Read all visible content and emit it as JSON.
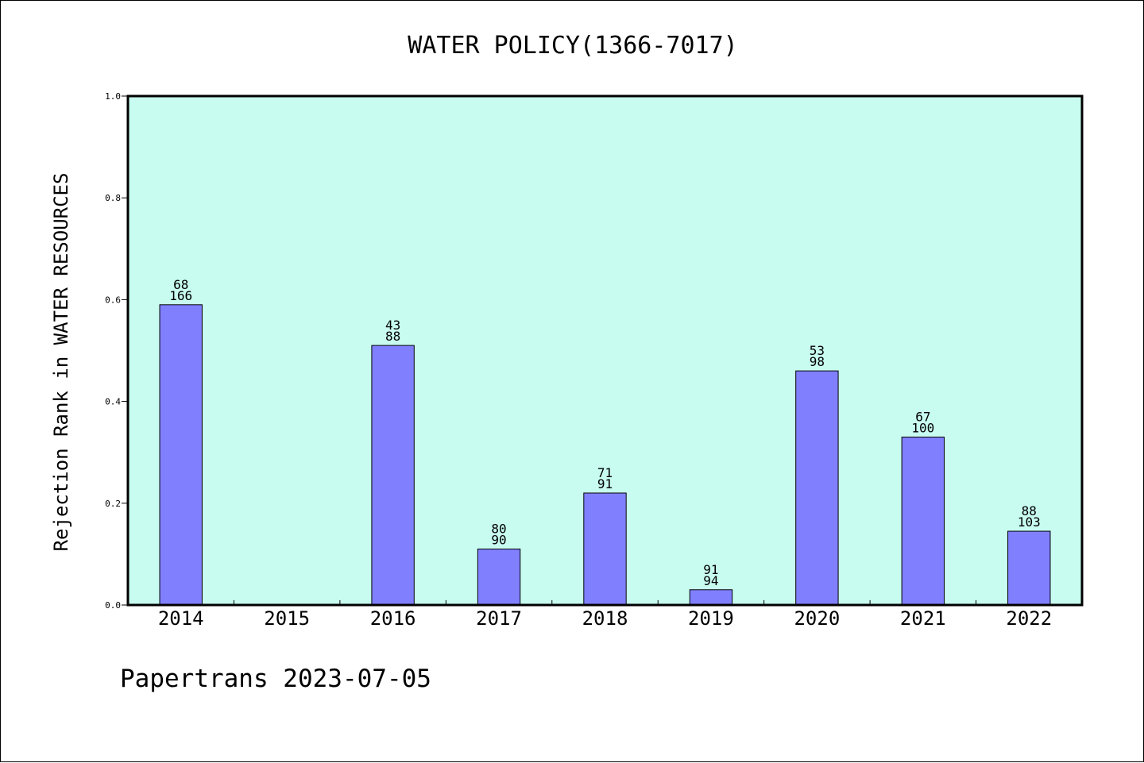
{
  "chart_data": {
    "type": "bar",
    "title": "WATER POLICY(1366-7017)",
    "xlabel": "",
    "ylabel": "Rejection Rank in WATER RESOURCES",
    "ylim": [
      0,
      1.0
    ],
    "yticks": [
      "0.0",
      "0.2",
      "0.4",
      "0.6",
      "0.8",
      "1.0"
    ],
    "categories": [
      "2014",
      "2015",
      "2016",
      "2017",
      "2018",
      "2019",
      "2020",
      "2021",
      "2022"
    ],
    "values": [
      0.59,
      null,
      0.51,
      0.11,
      0.22,
      0.03,
      0.46,
      0.33,
      0.145
    ],
    "labels_top": [
      "68",
      "",
      "43",
      "80",
      "71",
      "91",
      "53",
      "67",
      "88"
    ],
    "labels_bottom": [
      "166",
      "",
      "88",
      "90",
      "91",
      "94",
      "98",
      "100",
      "103"
    ],
    "grid": false,
    "colors": {
      "plot_background": "#c8fcf0",
      "bar_fill": "#8080ff",
      "bar_stroke": "#000000"
    }
  },
  "footer": "Papertrans 2023-07-05"
}
